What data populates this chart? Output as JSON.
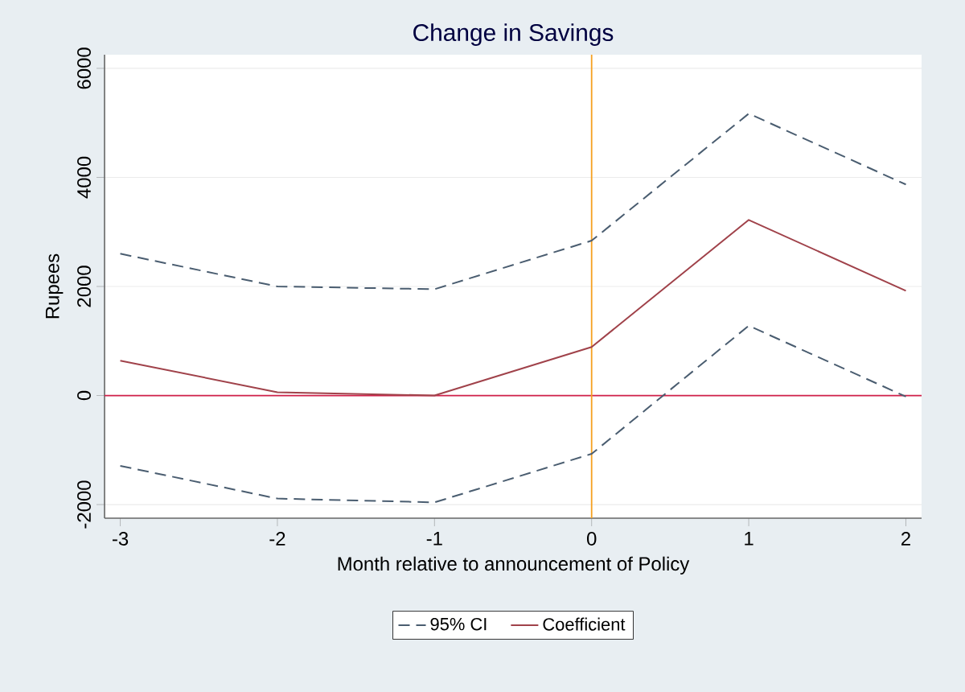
{
  "chart_data": {
    "type": "line",
    "title": "Change in Savings",
    "xlabel": "Month relative to announcement of Policy",
    "ylabel": "Rupees",
    "x": [
      -3,
      -2,
      -1,
      0,
      1,
      2
    ],
    "series": [
      {
        "name": "95% CI",
        "color": "#4a5d70",
        "line_style": "dashed",
        "values": [
          2600,
          2000,
          1950,
          2840,
          5170,
          3870
        ]
      },
      {
        "name": "Coefficient",
        "color": "#a0424a",
        "line_style": "solid",
        "values": [
          640,
          60,
          0,
          890,
          3220,
          1920
        ]
      },
      {
        "color": "#4a5d70",
        "line_style": "dashed",
        "values": [
          -1290,
          -1890,
          -1960,
          -1070,
          1280,
          -20
        ]
      }
    ],
    "xlim": [
      -3.1,
      2.1
    ],
    "ylim": [
      -2250,
      6250
    ],
    "xticks": [
      -3,
      -2,
      -1,
      0,
      1,
      2
    ],
    "yticks": [
      -2000,
      0,
      2000,
      4000,
      6000
    ],
    "ref_lines": [
      {
        "axis": "y",
        "value": 0,
        "color": "#d0204a"
      },
      {
        "axis": "x",
        "value": 0,
        "color": "#f5a020"
      }
    ],
    "grid": "y",
    "legend": "bottom"
  }
}
